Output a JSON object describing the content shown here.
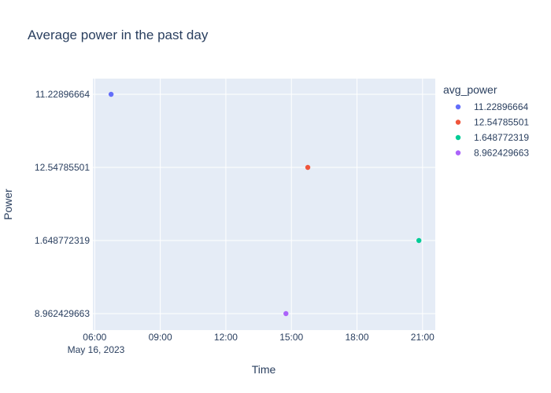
{
  "chart_data": {
    "type": "scatter",
    "title": "Average power in the past day",
    "xlabel": "Time",
    "ylabel": "Power",
    "x_axis": {
      "type": "date",
      "range": [
        "2023-05-16 05:55",
        "2023-05-16 21:35"
      ],
      "ticks": [
        "06:00",
        "09:00",
        "12:00",
        "15:00",
        "18:00",
        "21:00"
      ],
      "tick_values": [
        "2023-05-16 06:00",
        "2023-05-16 09:00",
        "2023-05-16 12:00",
        "2023-05-16 15:00",
        "2023-05-16 18:00",
        "2023-05-16 21:00"
      ],
      "date_label": "May 16, 2023"
    },
    "y_axis": {
      "type": "category",
      "categories": [
        "11.22896664",
        "12.54785501",
        "1.648772319",
        "8.962429663"
      ]
    },
    "grid": true,
    "legend": {
      "title": "avg_power",
      "placement": "right"
    },
    "series": [
      {
        "name": "11.22896664",
        "color": "#636efa",
        "x": "2023-05-16 06:45",
        "y": "11.22896664"
      },
      {
        "name": "12.54785501",
        "color": "#EF553B",
        "x": "2023-05-16 15:45",
        "y": "12.54785501"
      },
      {
        "name": "1.648772319",
        "color": "#00cc96",
        "x": "2023-05-16 20:50",
        "y": "1.648772319"
      },
      {
        "name": "8.962429663",
        "color": "#ab63fa",
        "x": "2023-05-16 14:45",
        "y": "8.962429663"
      }
    ]
  }
}
